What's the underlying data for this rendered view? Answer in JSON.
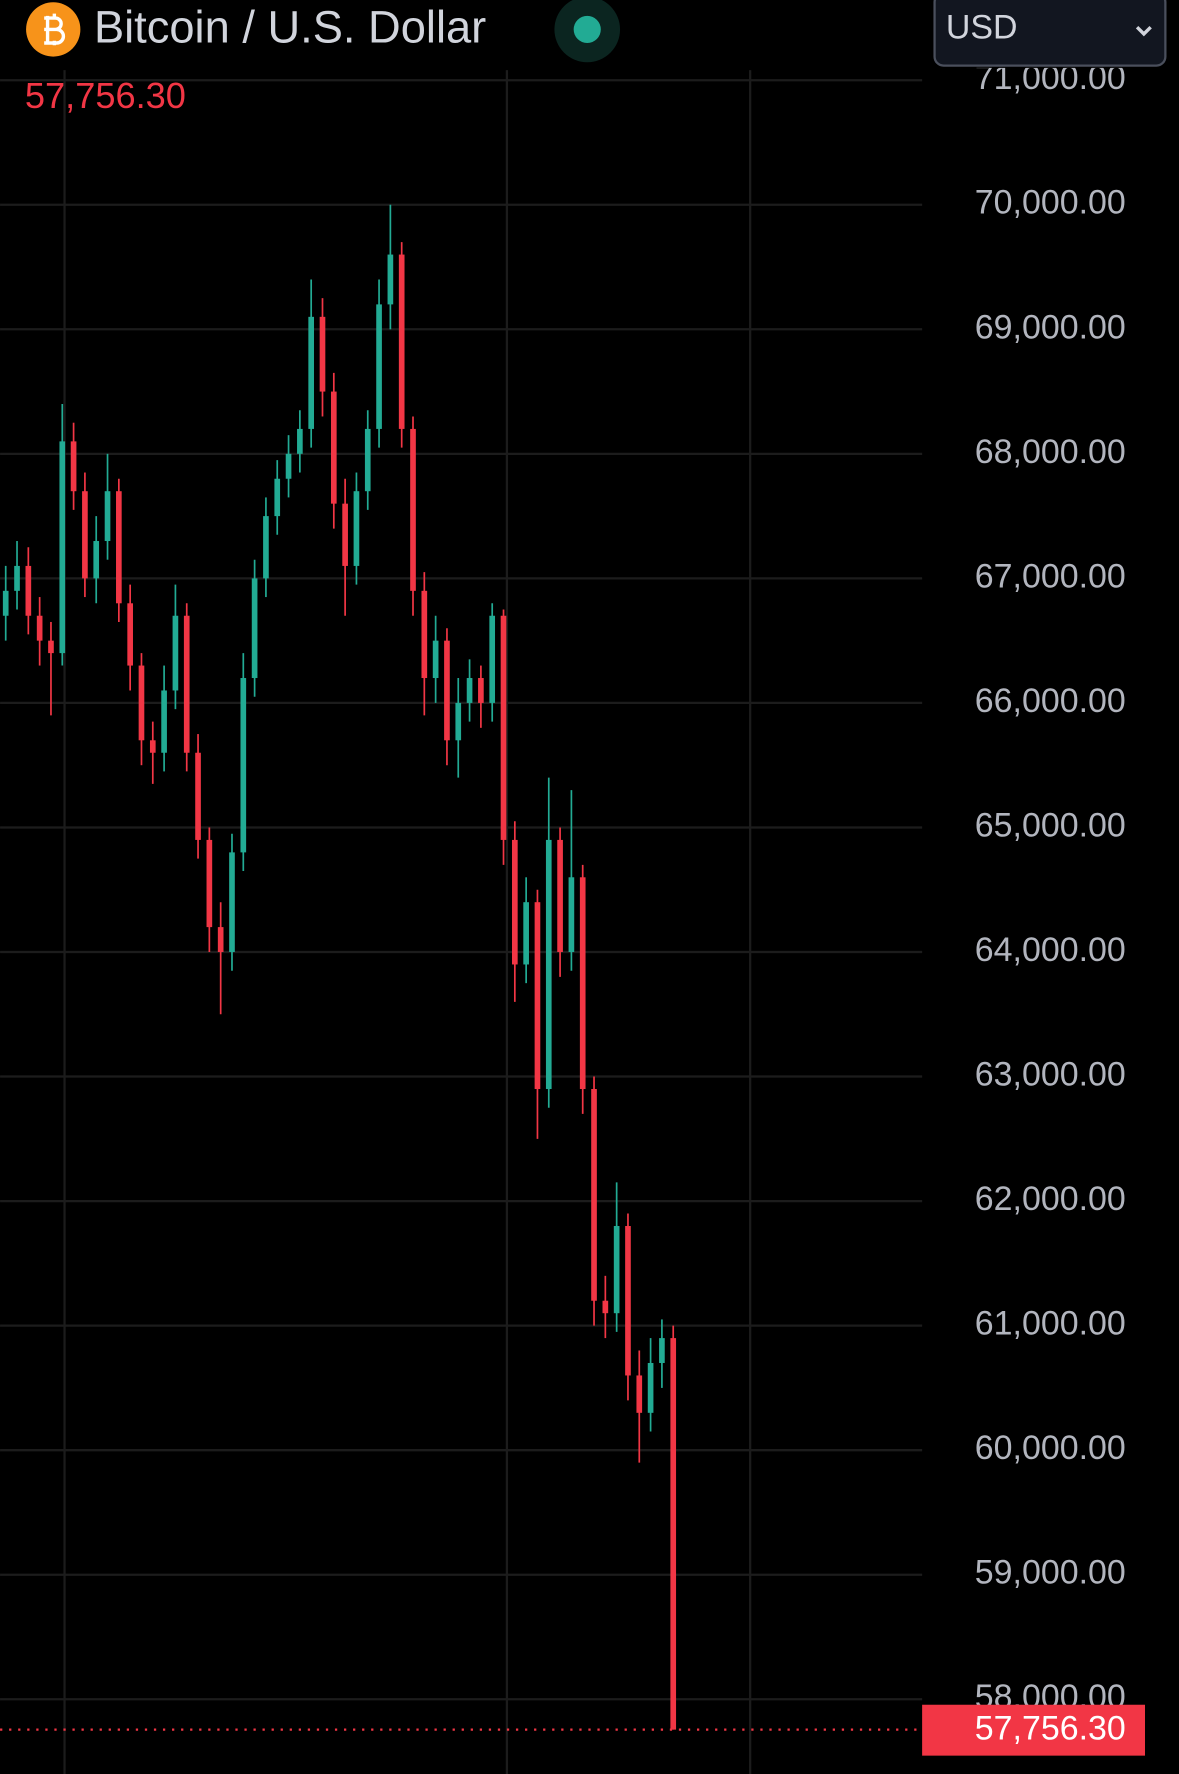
{
  "header": {
    "title": "Bitcoin / U.S. Dollar",
    "price": "57,756.30",
    "currency": "USD"
  },
  "chart_data": {
    "type": "candlestick",
    "up_color": "#22ab94",
    "down_color": "#f23645",
    "grid": true,
    "open": [
      66700,
      66900,
      67100,
      66700,
      66500,
      66400,
      68100,
      67700,
      67000,
      67300,
      67700,
      66800,
      66300,
      65700,
      65600,
      66100,
      66700,
      65600,
      64900,
      64200,
      64000,
      64800,
      66200,
      67000,
      67500,
      67800,
      68000,
      68200,
      69100,
      68500,
      67600,
      67100,
      67700,
      68200,
      69200,
      69600,
      68200,
      66900,
      66200,
      66500,
      65700,
      66000,
      66200,
      66000,
      66700,
      64900,
      63900,
      64400,
      62900,
      64900,
      64000,
      64600,
      62900,
      61200,
      61100,
      61800,
      60600,
      60300,
      60700,
      60900
    ],
    "high": [
      67100,
      67300,
      67250,
      66850,
      66650,
      68400,
      68250,
      67850,
      67500,
      68000,
      67800,
      66950,
      66400,
      65850,
      66300,
      66950,
      66800,
      65750,
      65000,
      64400,
      64950,
      66400,
      67150,
      67650,
      67950,
      68150,
      68350,
      69400,
      69250,
      68650,
      67800,
      67850,
      68350,
      69400,
      70000,
      69700,
      68300,
      67050,
      66700,
      66600,
      66200,
      66350,
      66300,
      66800,
      66750,
      65050,
      64600,
      64500,
      65400,
      65000,
      65300,
      64700,
      63000,
      61400,
      62150,
      61900,
      60800,
      60900,
      61050,
      61000
    ],
    "low": [
      66500,
      66750,
      66550,
      66300,
      65900,
      66300,
      67550,
      66850,
      66800,
      67150,
      66650,
      66100,
      65500,
      65350,
      65450,
      65950,
      65450,
      64750,
      64000,
      63500,
      63850,
      64650,
      66050,
      66850,
      67350,
      67650,
      67850,
      68050,
      68300,
      67400,
      66700,
      66950,
      67550,
      68050,
      69000,
      68050,
      66700,
      65900,
      66000,
      65500,
      65400,
      65850,
      65800,
      65850,
      64700,
      63600,
      63750,
      62500,
      62750,
      63800,
      63850,
      62700,
      61000,
      60900,
      60950,
      60400,
      59900,
      60150,
      60500,
      57756.3
    ],
    "close": [
      66900,
      67100,
      66700,
      66500,
      66400,
      68100,
      67700,
      67000,
      67300,
      67700,
      66800,
      66300,
      65700,
      65600,
      66100,
      66700,
      65600,
      64900,
      64200,
      64000,
      64800,
      66200,
      67000,
      67500,
      67800,
      68000,
      68200,
      69100,
      68500,
      67600,
      67100,
      67700,
      68200,
      69200,
      69600,
      68200,
      66900,
      66200,
      66500,
      65700,
      66000,
      66200,
      66000,
      66700,
      64900,
      63900,
      64400,
      62900,
      64900,
      64000,
      64600,
      62900,
      61200,
      61100,
      61800,
      60600,
      60300,
      60700,
      60900,
      57756.3
    ],
    "ylim": [
      57400,
      71644
    ],
    "yticks": [
      {
        "value": 71000,
        "label": "71,000.00"
      },
      {
        "value": 70000,
        "label": "70,000.00"
      },
      {
        "value": 69000,
        "label": "69,000.00"
      },
      {
        "value": 68000,
        "label": "68,000.00"
      },
      {
        "value": 67000,
        "label": "67,000.00"
      },
      {
        "value": 66000,
        "label": "66,000.00"
      },
      {
        "value": 65000,
        "label": "65,000.00"
      },
      {
        "value": 64000,
        "label": "64,000.00"
      },
      {
        "value": 63000,
        "label": "63,000.00"
      },
      {
        "value": 62000,
        "label": "62,000.00"
      },
      {
        "value": 61000,
        "label": "61,000.00"
      },
      {
        "value": 60000,
        "label": "60,000.00"
      },
      {
        "value": 59000,
        "label": "59,000.00"
      },
      {
        "value": 58000,
        "label": "58,000.00"
      }
    ]
  }
}
